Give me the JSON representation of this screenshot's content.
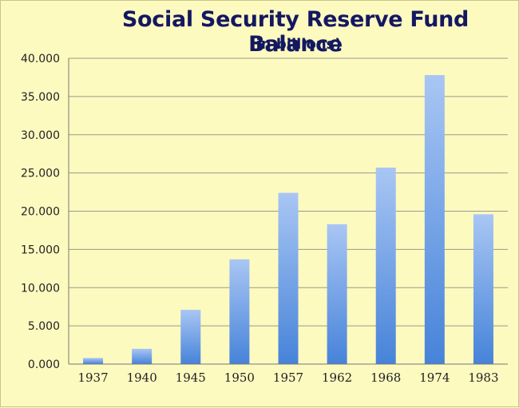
{
  "chart_data": {
    "type": "bar",
    "title": "Social Security Reserve Fund Balance",
    "subtitle": "(in billions)",
    "xlabel": "",
    "ylabel": "",
    "categories": [
      "1937",
      "1940",
      "1945",
      "1950",
      "1957",
      "1962",
      "1968",
      "1974",
      "1983"
    ],
    "values": [
      0.8,
      2.0,
      7.1,
      13.7,
      22.4,
      18.3,
      25.7,
      37.8,
      19.6
    ],
    "ylim": [
      0,
      40
    ],
    "yticks": [
      "0.000",
      "5.000",
      "10.000",
      "15.000",
      "20.000",
      "25.000",
      "30.000",
      "35.000",
      "40.000"
    ],
    "grid": true,
    "colors": {
      "bar_top": "#a9c6f4",
      "bar_bottom": "#4683d9",
      "title": "#141861",
      "background": "#fdfac0"
    }
  }
}
